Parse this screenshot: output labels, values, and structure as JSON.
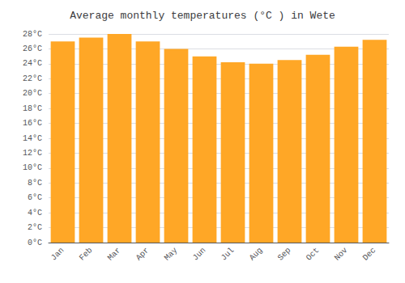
{
  "chart_data": {
    "type": "bar",
    "title": "Average monthly temperatures (°C ) in Wete",
    "categories": [
      "Jan",
      "Feb",
      "Mar",
      "Apr",
      "May",
      "Jun",
      "Jul",
      "Aug",
      "Sep",
      "Oct",
      "Nov",
      "Dec"
    ],
    "values": [
      27.0,
      27.5,
      28.0,
      27.0,
      26.0,
      25.0,
      24.2,
      24.0,
      24.5,
      25.2,
      26.3,
      27.2
    ],
    "color": "#FFA726",
    "ylim": [
      0,
      28
    ],
    "yticks": [
      {
        "value": 0,
        "label": "0°C"
      },
      {
        "value": 2,
        "label": "2°C"
      },
      {
        "value": 4,
        "label": "4°C"
      },
      {
        "value": 6,
        "label": "6°C"
      },
      {
        "value": 8,
        "label": "8°C"
      },
      {
        "value": 10,
        "label": "10°C"
      },
      {
        "value": 12,
        "label": "12°C"
      },
      {
        "value": 14,
        "label": "14°C"
      },
      {
        "value": 16,
        "label": "16°C"
      },
      {
        "value": 18,
        "label": "18°C"
      },
      {
        "value": 20,
        "label": "20°C"
      },
      {
        "value": 22,
        "label": "22°C"
      },
      {
        "value": 24,
        "label": "24°C"
      },
      {
        "value": 26,
        "label": "26°C"
      },
      {
        "value": 28,
        "label": "28°C"
      }
    ],
    "grid": true
  }
}
